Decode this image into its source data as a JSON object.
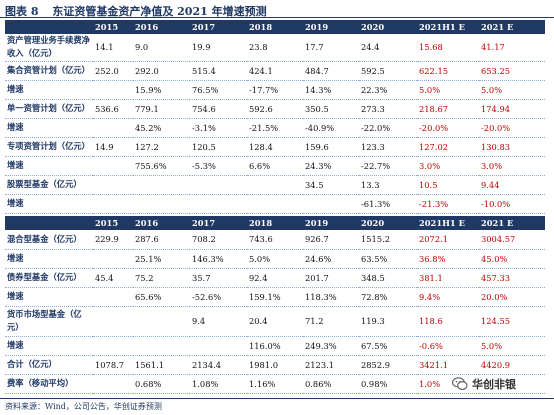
{
  "caption": {
    "number": "图表 8",
    "title": "东证资管基金资产净值及 2021 年增速预测"
  },
  "table1": {
    "headers": [
      "",
      "2015",
      "2016",
      "2017",
      "2018",
      "2019",
      "2020",
      "2021H1 E",
      "2021 E"
    ],
    "rows": [
      {
        "label": "资产管理业务手续费净收入（亿元）",
        "cells": [
          "14.1",
          "9.0",
          "19.9",
          "23.8",
          "17.7",
          "24.4",
          "15.68",
          "41.17"
        ]
      },
      {
        "label": "集合资管计划（亿元）",
        "cells": [
          "252.0",
          "292.0",
          "515.4",
          "424.1",
          "484.7",
          "592.5",
          "622.15",
          "653.25"
        ]
      },
      {
        "label": "增速",
        "cells": [
          "",
          "15.9%",
          "76.5%",
          "-17.7%",
          "14.3%",
          "22.3%",
          "5.0%",
          "5.0%"
        ]
      },
      {
        "label": "单一资管计划（亿元）",
        "cells": [
          "536.6",
          "779.1",
          "754.6",
          "592.6",
          "350.5",
          "273.3",
          "218.67",
          "174.94"
        ]
      },
      {
        "label": "增速",
        "cells": [
          "",
          "45.2%",
          "-3.1%",
          "-21.5%",
          "-40.9%",
          "-22.0%",
          "-20.0%",
          "-20.0%"
        ]
      },
      {
        "label": "专项资管计划（亿元）",
        "cells": [
          "14.9",
          "127.2",
          "120.5",
          "128.4",
          "159.6",
          "123.3",
          "127.02",
          "130.83"
        ]
      },
      {
        "label": "增速",
        "cells": [
          "",
          "755.6%",
          "-5.3%",
          "6.6%",
          "24.3%",
          "-22.7%",
          "3.0%",
          "3.0%"
        ]
      },
      {
        "label": "股票型基金（亿元）",
        "cells": [
          "",
          "",
          "",
          "",
          "34.5",
          "13.3",
          "10.5",
          "9.44"
        ]
      },
      {
        "label": "增速",
        "cells": [
          "",
          "",
          "",
          "",
          "",
          "-61.3%",
          "-21.3%",
          "-10.0%"
        ]
      }
    ]
  },
  "table2": {
    "headers": [
      "",
      "2015",
      "2016",
      "2017",
      "2018",
      "2019",
      "2020",
      "2021H1 E",
      "2021 E"
    ],
    "rows": [
      {
        "label": "混合型基金（亿元）",
        "cells": [
          "229.9",
          "287.6",
          "708.2",
          "743.6",
          "926.7",
          "1515.2",
          "2072.1",
          "3004.57"
        ]
      },
      {
        "label": "增速",
        "cells": [
          "",
          "25.1%",
          "146.3%",
          "5.0%",
          "24.6%",
          "63.5%",
          "36.8%",
          "45.0%"
        ]
      },
      {
        "label": "债券型基金（亿元）",
        "cells": [
          "45.4",
          "75.2",
          "35.7",
          "92.4",
          "201.7",
          "348.5",
          "381.1",
          "457.33"
        ]
      },
      {
        "label": "增速",
        "cells": [
          "",
          "65.6%",
          "-52.6%",
          "159.1%",
          "118.3%",
          "72.8%",
          "9.4%",
          "20.0%"
        ]
      },
      {
        "label": "货币市场型基金（亿元）",
        "cells": [
          "",
          "",
          "9.4",
          "20.4",
          "71.2",
          "119.3",
          "118.6",
          "124.55"
        ]
      },
      {
        "label": "增速",
        "cells": [
          "",
          "",
          "",
          "116.0%",
          "249.3%",
          "67.5%",
          "-0.6%",
          "5.0%"
        ]
      },
      {
        "label": "合计（亿元）",
        "cells": [
          "1078.7",
          "1561.1",
          "2134.4",
          "1981.0",
          "2123.1",
          "2852.9",
          "3421.1",
          "4420.9"
        ]
      },
      {
        "label": "费率（移动平均）",
        "cells": [
          "",
          "0.68%",
          "1.08%",
          "1.16%",
          "0.86%",
          "0.98%",
          "1.0%",
          ""
        ]
      }
    ]
  },
  "footer": "资料来源：Wind，公司公告，华创证券预测",
  "watermark": "华创非银",
  "colors": {
    "header_bg": "#1f3864",
    "forecast_red": "#c00000",
    "label_blue": "#1f3864"
  },
  "icons": {
    "watermark_icon": "wechat-icon"
  }
}
